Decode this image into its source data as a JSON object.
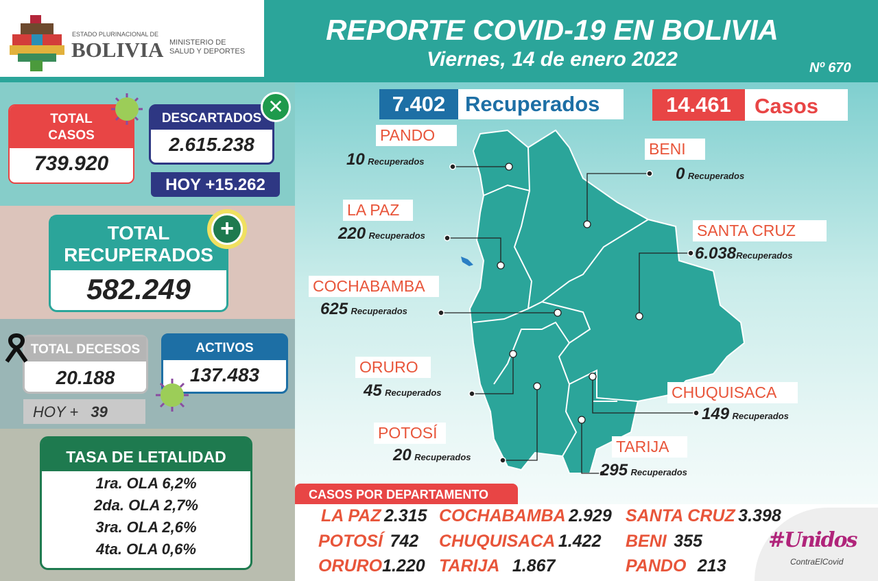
{
  "header": {
    "logo_small": "ESTADO PLURINACIONAL DE",
    "logo_big": "BOLIVIA",
    "ministry_line1": "MINISTERIO DE",
    "ministry_line2": "SALUD Y DEPORTES",
    "title": "REPORTE COVID-19 EN BOLIVIA",
    "date": "Viernes, 14 de enero 2022",
    "report_number": "Nº 670"
  },
  "totals": {
    "total_casos_label1": "TOTAL",
    "total_casos_label2": "CASOS",
    "total_casos": "739.920",
    "descartados_label": "DESCARTADOS",
    "descartados": "2.615.238",
    "descartados_hoy": "HOY +15.262",
    "recuperados_label1": "TOTAL",
    "recuperados_label2": "RECUPERADOS",
    "recuperados": "582.249",
    "decesos_label": "TOTAL DECESOS",
    "decesos": "20.188",
    "decesos_hoy_label": "HOY +",
    "decesos_hoy": "39",
    "activos_label": "ACTIVOS",
    "activos": "137.483"
  },
  "letalidad": {
    "title": "TASA DE LETALIDAD",
    "rows": [
      "1ra. OLA 6,2%",
      "2da. OLA 2,7%",
      "3ra. OLA 2,6%",
      "4ta. OLA 0,6%"
    ]
  },
  "daily": {
    "recuperados_value": "7.402",
    "recuperados_label": "Recuperados",
    "casos_value": "14.461",
    "casos_label": "Casos"
  },
  "map": {
    "suffix": "Recuperados",
    "departments": [
      {
        "name": "PANDO",
        "value": "10"
      },
      {
        "name": "BENI",
        "value": "0"
      },
      {
        "name": "LA PAZ",
        "value": "220"
      },
      {
        "name": "SANTA CRUZ",
        "value": "6.038"
      },
      {
        "name": "COCHABAMBA",
        "value": "625"
      },
      {
        "name": "ORURO",
        "value": "45"
      },
      {
        "name": "CHUQUISACA",
        "value": "149"
      },
      {
        "name": "POTOSÍ",
        "value": "20"
      },
      {
        "name": "TARIJA",
        "value": "295"
      }
    ]
  },
  "casos_departamento": {
    "title": "CASOS POR DEPARTAMENTO",
    "items": [
      {
        "name": "LA PAZ",
        "value": "2.315"
      },
      {
        "name": "COCHABAMBA",
        "value": "2.929"
      },
      {
        "name": "SANTA CRUZ",
        "value": "3.398"
      },
      {
        "name": "POTOSÍ",
        "value": "742"
      },
      {
        "name": "CHUQUISACA",
        "value": "1.422"
      },
      {
        "name": "BENI",
        "value": "355"
      },
      {
        "name": "ORURO",
        "value": "1.220"
      },
      {
        "name": "TARIJA",
        "value": "1.867"
      },
      {
        "name": "PANDO",
        "value": "213"
      }
    ]
  },
  "campaign": {
    "line1": "#Unidos",
    "line2": "ContraElCovid"
  },
  "colors": {
    "teal": "#2ba59a",
    "red": "#e84545",
    "navy": "#2e3783",
    "blue": "#1d6fa5",
    "orange": "#e8553a",
    "green": "#1e7a4f"
  }
}
